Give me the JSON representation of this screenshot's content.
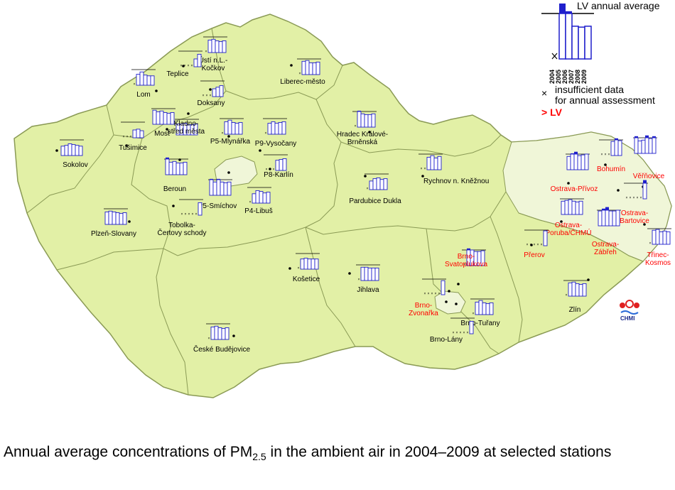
{
  "legend": {
    "lv_label": "LV annual average",
    "years": [
      "2004",
      "2005",
      "2006",
      "2007",
      "2008",
      "2009"
    ],
    "insufficient_line1": "insufficient data",
    "insufficient_line2": "for annual assessment",
    "exceed_label": "> LV"
  },
  "caption": {
    "text_before": "Annual average concentrations of PM",
    "subscript": "2.5",
    "text_after": " in the ambient air in 2004–2009 at selected stations"
  },
  "logo": {
    "text": "CHMI"
  },
  "colors": {
    "land": "#e2f0a6",
    "ostrava_region": "#f0f6d8",
    "border": "#8a9a55",
    "bar_fill": "#ffffff",
    "bar_stroke": "#1f1fcc",
    "exceed_fill": "#1f1fcc",
    "exceed_label": "#ff0000"
  },
  "stations": [
    {
      "name": "Ústí n.L.-\nKočkov",
      "red": false,
      "values": [
        null,
        0.8,
        0.85,
        0.75,
        0.7,
        0.75
      ]
    },
    {
      "name": "Teplice",
      "red": false,
      "values": [
        null,
        null,
        null,
        null,
        0.5,
        0.8
      ]
    },
    {
      "name": "Liberec-město",
      "red": false,
      "values": [
        null,
        0.85,
        0.9,
        0.75,
        0.75,
        0.8
      ]
    },
    {
      "name": "Lom",
      "red": false,
      "values": [
        null,
        0.7,
        0.85,
        0.65,
        0.6,
        0.6
      ]
    },
    {
      "name": "Doksany",
      "red": false,
      "values": [
        null,
        null,
        null,
        0.5,
        0.6,
        0.7
      ]
    },
    {
      "name": "Most",
      "red": false,
      "values": [
        0.9,
        0.8,
        0.85,
        0.75,
        0.7,
        0.75
      ]
    },
    {
      "name": "Kladno-\nstřed města",
      "red": false,
      "values": [
        0.7,
        0.7,
        0.75,
        0.65,
        0.65,
        0.7
      ]
    },
    {
      "name": "P5-Mlynářka",
      "red": false,
      "values": [
        null,
        0.8,
        0.9,
        0.75,
        0.7,
        0.75
      ]
    },
    {
      "name": "P9-Vysočany",
      "red": false,
      "values": [
        null,
        0.7,
        0.8,
        0.7,
        0.75,
        0.8
      ]
    },
    {
      "name": "Hradec Králové-\nBrněnská",
      "red": false,
      "values": [
        null,
        1.05,
        0.85,
        0.8,
        0.8,
        0.85
      ]
    },
    {
      "name": "Sokolov",
      "red": false,
      "values": [
        0.6,
        0.65,
        0.75,
        0.7,
        0.65,
        0.6
      ]
    },
    {
      "name": "Tušimice",
      "red": false,
      "values": [
        null,
        null,
        null,
        0.5,
        0.55,
        0.45
      ]
    },
    {
      "name": "P8-Karlín",
      "red": false,
      "values": [
        null,
        null,
        null,
        0.65,
        0.7,
        0.75
      ]
    },
    {
      "name": "Beroun",
      "red": false,
      "values": [
        1.1,
        0.8,
        0.85,
        0.75,
        0.75,
        0.8
      ]
    },
    {
      "name": "Rychnov n. Kněžnou",
      "red": false,
      "values": [
        null,
        null,
        0.8,
        0.9,
        0.75,
        0.85
      ]
    },
    {
      "name": "P5-Smíchov",
      "red": false,
      "values": [
        1.05,
        0.85,
        1.05,
        0.85,
        0.8,
        0.85
      ]
    },
    {
      "name": "P4-Libuš",
      "red": false,
      "values": [
        null,
        0.6,
        0.8,
        0.75,
        0.65,
        0.7
      ]
    },
    {
      "name": "Pardubice Dukla",
      "red": false,
      "values": [
        null,
        0.55,
        0.7,
        0.75,
        0.65,
        0.7
      ]
    },
    {
      "name": "Tobolka-\nČertovy schody",
      "red": false,
      "values": [
        null,
        null,
        null,
        null,
        null,
        0.8
      ]
    },
    {
      "name": "Plzeň-Slovany",
      "red": false,
      "values": [
        0.8,
        0.85,
        0.8,
        0.75,
        0.7,
        0.75
      ]
    },
    {
      "name": "Bohumín",
      "red": true,
      "values": [
        null,
        null,
        null,
        0.9,
        1.1,
        0.95
      ]
    },
    {
      "name": "Věřňovice",
      "red": true,
      "values": [
        1.1,
        0.8,
        0.85,
        1.15,
        0.95,
        1.1
      ]
    },
    {
      "name": "Ostrava-Přívoz",
      "red": true,
      "values": [
        0.85,
        1.05,
        1.15,
        0.9,
        0.95,
        1.0
      ]
    },
    {
      "name": "Ostrava-\nBartovice",
      "red": true,
      "values": [
        null,
        null,
        null,
        null,
        null,
        1.2
      ]
    },
    {
      "name": "Ostrava-\nPoruba/ČHMÚ",
      "red": true,
      "values": [
        0.85,
        0.9,
        0.95,
        0.85,
        0.8,
        0.85
      ]
    },
    {
      "name": "Ostrava-\nZábřeh",
      "red": true,
      "values": [
        0.95,
        1.1,
        1.2,
        0.95,
        0.95,
        1.0
      ]
    },
    {
      "name": "Přerov",
      "red": true,
      "values": [
        null,
        null,
        null,
        null,
        null,
        0.95
      ]
    },
    {
      "name": "Třinec-\nKosmos",
      "red": true,
      "values": [
        null,
        0.9,
        0.95,
        0.8,
        0.85,
        0.8
      ]
    },
    {
      "name": "Košetice",
      "red": false,
      "values": [
        null,
        0.65,
        0.7,
        0.65,
        0.65,
        0.65
      ]
    },
    {
      "name": "Jihlava",
      "red": false,
      "values": [
        null,
        0.85,
        0.85,
        0.8,
        0.8,
        0.8
      ]
    },
    {
      "name": "Brno-\nSvatoplukova",
      "red": true,
      "values": [
        null,
        1.1,
        1.0,
        0.9,
        0.9,
        0.95
      ]
    },
    {
      "name": "Brno-\nZvonařka",
      "red": true,
      "values": [
        null,
        null,
        null,
        null,
        null,
        0.9
      ]
    },
    {
      "name": "Brno-Tuřany",
      "red": false,
      "values": [
        null,
        0.8,
        0.9,
        0.75,
        0.7,
        0.75
      ]
    },
    {
      "name": "Brno-Lány",
      "red": false,
      "values": [
        null,
        null,
        null,
        null,
        null,
        0.8
      ]
    },
    {
      "name": "Zlín",
      "red": false,
      "values": [
        null,
        0.85,
        0.9,
        0.8,
        0.75,
        0.8
      ]
    },
    {
      "name": "České Budějovice",
      "red": false,
      "values": [
        null,
        0.8,
        0.85,
        0.75,
        0.7,
        0.75
      ]
    }
  ]
}
